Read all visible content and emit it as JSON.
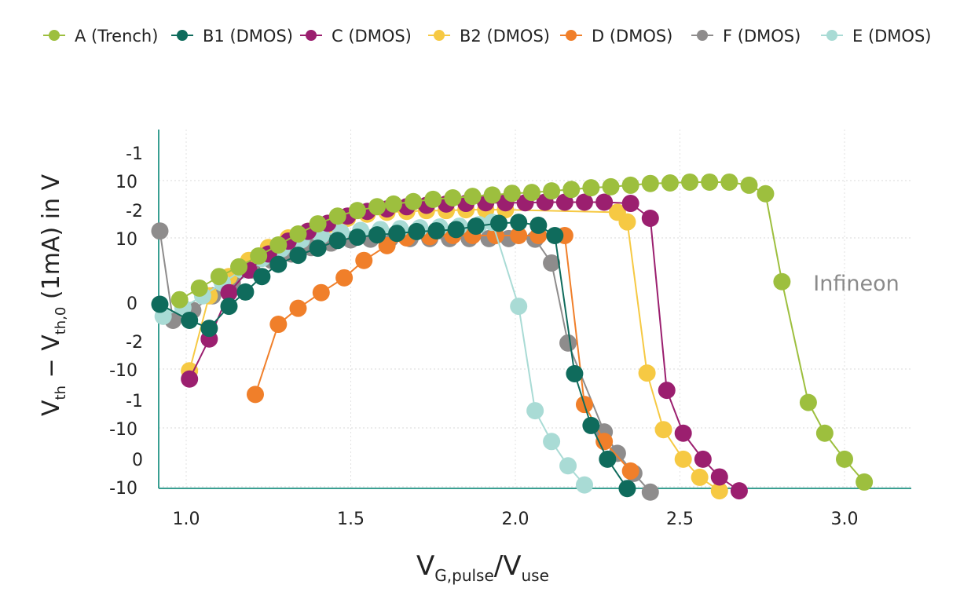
{
  "chart_data": {
    "type": "line",
    "title": "",
    "xlabel": {
      "main": "V",
      "sub1": "G,pulse",
      "slash": "/V",
      "sub2": "use"
    },
    "ylabel": {
      "a": "V",
      "a_sub": "th",
      "dash": " − V",
      "b_sub": "th,0",
      "rest": " (1mA) in V"
    },
    "x_ticks": [
      {
        "value": 1.0,
        "label": "1.0"
      },
      {
        "value": 1.5,
        "label": "1.5"
      },
      {
        "value": 2.0,
        "label": "2.0"
      },
      {
        "value": 2.5,
        "label": "2.5"
      },
      {
        "value": 3.0,
        "label": "3.0"
      }
    ],
    "y_scale": "symlog",
    "y_ticks": [
      {
        "value": 0.1,
        "exp": "-1",
        "base": "10"
      },
      {
        "value": 0.01,
        "exp": "-2",
        "base": "10"
      },
      {
        "value": 0,
        "exp": "",
        "base": "0"
      },
      {
        "value": -0.01,
        "exp": "-2",
        "base": "-10"
      },
      {
        "value": -0.1,
        "exp": "-1",
        "base": "-10"
      },
      {
        "value": -1,
        "exp": "0",
        "base": "-10"
      }
    ],
    "xlim": [
      0.92,
      3.2
    ],
    "ylim": [
      -1.0,
      0.2
    ],
    "grid": true,
    "legend_position": "top",
    "annotation": "Infineon",
    "series": [
      {
        "name": "A (Trench)",
        "color": "#9dbf3e",
        "x": [
          0.98,
          1.04,
          1.1,
          1.16,
          1.22,
          1.28,
          1.34,
          1.4,
          1.46,
          1.52,
          1.58,
          1.63,
          1.69,
          1.75,
          1.81,
          1.87,
          1.93,
          1.99,
          2.05,
          2.11,
          2.17,
          2.23,
          2.29,
          2.35,
          2.41,
          2.47,
          2.53,
          2.59,
          2.65,
          2.71,
          2.76,
          2.81,
          2.89,
          2.94,
          3.0,
          3.06
        ],
        "y": [
          0.0004,
          0.0022,
          0.004,
          0.0055,
          0.0072,
          0.0089,
          0.0117,
          0.0176,
          0.024,
          0.03,
          0.035,
          0.039,
          0.043,
          0.047,
          0.05,
          0.053,
          0.056,
          0.06,
          0.062,
          0.066,
          0.07,
          0.075,
          0.078,
          0.083,
          0.089,
          0.091,
          0.094,
          0.094,
          0.094,
          0.083,
          0.059,
          0.0032,
          -0.037,
          -0.123,
          -0.34,
          -0.83
        ]
      },
      {
        "name": "B1 (DMOS)",
        "color": "#0f6b5c",
        "x": [
          0.92,
          1.01,
          1.07,
          1.13,
          1.18,
          1.23,
          1.28,
          1.34,
          1.4,
          1.46,
          1.52,
          1.58,
          1.64,
          1.7,
          1.76,
          1.82,
          1.88,
          1.95,
          2.01,
          2.07,
          2.12,
          2.18,
          2.23,
          2.28,
          2.34
        ],
        "y": [
          -0.0003,
          -0.0027,
          -0.0039,
          -0.0006,
          0.0016,
          0.004,
          0.0059,
          0.0073,
          0.0084,
          0.0096,
          0.0103,
          0.0113,
          0.012,
          0.0129,
          0.0133,
          0.014,
          0.016,
          0.018,
          0.0187,
          0.0166,
          0.011,
          -0.012,
          -0.091,
          -0.34,
          -1.07
        ]
      },
      {
        "name": "C (DMOS)",
        "color": "#9b1f6f",
        "x": [
          1.01,
          1.07,
          1.13,
          1.19,
          1.25,
          1.31,
          1.37,
          1.43,
          1.49,
          1.55,
          1.61,
          1.67,
          1.73,
          1.79,
          1.85,
          1.91,
          1.97,
          2.03,
          2.09,
          2.15,
          2.21,
          2.27,
          2.35,
          2.41,
          2.46,
          2.51,
          2.57,
          2.62,
          2.68
        ],
        "y": [
          -0.0148,
          -0.0055,
          0.0015,
          0.005,
          0.0075,
          0.0095,
          0.013,
          0.018,
          0.024,
          0.029,
          0.032,
          0.035,
          0.037,
          0.039,
          0.04,
          0.041,
          0.041,
          0.041,
          0.042,
          0.042,
          0.042,
          0.042,
          0.04,
          0.022,
          -0.023,
          -0.123,
          -0.34,
          -0.68,
          -1.17
        ]
      },
      {
        "name": "B2 (DMOS)",
        "color": "#f6c943",
        "x": [
          1.01,
          1.07,
          1.13,
          1.19,
          1.25,
          1.31,
          1.37,
          1.43,
          1.49,
          1.55,
          1.61,
          1.67,
          1.73,
          1.79,
          1.85,
          1.91,
          1.97,
          2.31,
          2.34,
          2.4,
          2.45,
          2.51,
          2.56,
          2.62
        ],
        "y": [
          -0.0107,
          0.001,
          0.004,
          0.0065,
          0.0085,
          0.01,
          0.013,
          0.017,
          0.022,
          0.026,
          0.028,
          0.029,
          0.03,
          0.03,
          0.031,
          0.031,
          0.031,
          0.028,
          0.019,
          -0.0117,
          -0.107,
          -0.34,
          -0.69,
          -1.17
        ]
      },
      {
        "name": "D (DMOS)",
        "color": "#f07f2a",
        "x": [
          1.21,
          1.28,
          1.34,
          1.41,
          1.48,
          1.54,
          1.61,
          1.67,
          1.74,
          1.81,
          1.87,
          1.94,
          2.01,
          2.07,
          2.15,
          2.21,
          2.27,
          2.35
        ],
        "y": [
          -0.027,
          -0.0033,
          -0.0009,
          0.0015,
          0.0038,
          0.0065,
          0.0088,
          0.01,
          0.0105,
          0.011,
          0.011,
          0.011,
          0.011,
          0.011,
          0.011,
          -0.04,
          -0.17,
          -0.54
        ]
      },
      {
        "name": "F (DMOS)",
        "color": "#8e8c8c",
        "x": [
          0.92,
          0.96,
          1.02,
          1.08,
          1.14,
          1.2,
          1.26,
          1.32,
          1.38,
          1.44,
          1.5,
          1.56,
          1.62,
          1.68,
          1.74,
          1.8,
          1.86,
          1.92,
          1.98,
          2.06,
          2.11,
          2.16,
          2.27,
          2.31,
          2.36,
          2.41
        ],
        "y": [
          0.0132,
          -0.0027,
          -0.0012,
          0.001,
          0.003,
          0.005,
          0.0065,
          0.0075,
          0.0085,
          0.0092,
          0.0097,
          0.0098,
          0.0099,
          0.0099,
          0.0099,
          0.0099,
          0.0099,
          0.0099,
          0.0099,
          0.0098,
          0.0061,
          -0.0061,
          -0.117,
          -0.27,
          -0.59,
          -1.23
        ]
      },
      {
        "name": "E (DMOS)",
        "color": "#a9dbd5",
        "x": [
          0.93,
          0.99,
          1.05,
          1.11,
          1.17,
          1.23,
          1.29,
          1.35,
          1.41,
          1.47,
          1.53,
          1.59,
          1.65,
          1.71,
          1.77,
          1.83,
          1.89,
          1.93,
          2.01,
          2.06,
          2.11,
          2.16,
          2.21
        ],
        "y": [
          -0.0021,
          -0.0008,
          0.001,
          0.003,
          0.005,
          0.0068,
          0.0083,
          0.0097,
          0.011,
          0.0125,
          0.0135,
          0.014,
          0.0145,
          0.015,
          0.0155,
          0.016,
          0.017,
          0.0187,
          -0.0006,
          -0.051,
          -0.17,
          -0.44,
          -0.93
        ]
      }
    ]
  }
}
